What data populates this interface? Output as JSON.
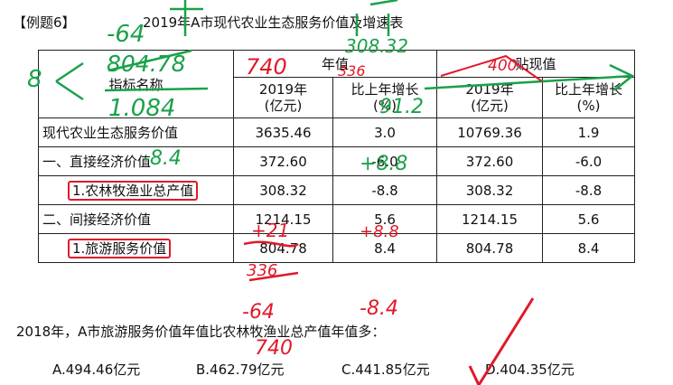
{
  "header": {
    "tag": "【例题6】",
    "title": "2019年A市现代农业生态服务价值及增速表"
  },
  "table": {
    "col_headers": {
      "indicator": "指标名称",
      "annual": "年值",
      "discounted": "贴现值",
      "year": "2019年",
      "unit_value": "(亿元)",
      "growth": "比上年增长",
      "unit_pct": "(%)"
    },
    "rows": [
      {
        "name": "现代农业生态服务价值",
        "v1": "3635.46",
        "g1": "3.0",
        "v2": "10769.36",
        "g2": "1.9"
      },
      {
        "name": "一、直接经济价值",
        "v1": "372.60",
        "g1": "-6.0",
        "v2": "372.60",
        "g2": "-6.0"
      },
      {
        "name": "1.农林牧渔业总产值",
        "v1": "308.32",
        "g1": "-8.8",
        "v2": "308.32",
        "g2": "-8.8"
      },
      {
        "name": "二、间接经济价值",
        "v1": "1214.15",
        "g1": "5.6",
        "v2": "1214.15",
        "g2": "5.6"
      },
      {
        "name": "1.旅游服务价值",
        "v1": "804.78",
        "g1": "8.4",
        "v2": "804.78",
        "g2": "8.4"
      }
    ]
  },
  "question": "2018年，A市旅游服务价值年值比农林牧渔业总产值年值多：",
  "options": [
    {
      "label": "A.494.46亿元"
    },
    {
      "label": "B.462.79亿元"
    },
    {
      "label": "C.441.85亿元"
    },
    {
      "label": "D.404.35亿元"
    }
  ],
  "annotations": {
    "color": "#1aa14a",
    "red": "#e0192a",
    "n1": "-64",
    "n2": "804.78",
    "n3": "1.084",
    "n4": "8",
    "n5": "-8.4",
    "n6": "+8.8",
    "n7": "91.2",
    "n8": "+21",
    "n9": "+8.8",
    "n10": "-64",
    "n11": "-8.4",
    "n12": "740",
    "n13": "740",
    "n14": "336",
    "n15": "308.32",
    "n16": "336",
    "n17": "400"
  }
}
